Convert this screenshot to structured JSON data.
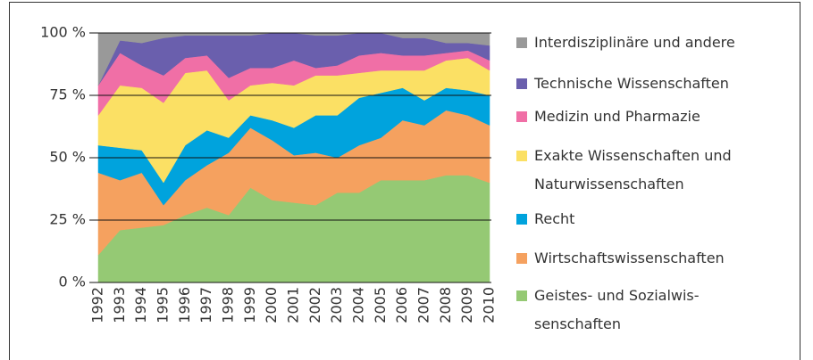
{
  "chart_data": {
    "type": "stacked_area",
    "categories": [
      "1992",
      "1993",
      "1994",
      "1995",
      "1996",
      "1997",
      "1998",
      "1999",
      "2000",
      "2001",
      "2002",
      "2003",
      "2004",
      "2005",
      "2006",
      "2007",
      "2008",
      "2009",
      "2010"
    ],
    "ylim": [
      0,
      100
    ],
    "yticks": [
      {
        "value": 0,
        "label": "0 %"
      },
      {
        "value": 25,
        "label": "25 %"
      },
      {
        "value": 50,
        "label": "50 %"
      },
      {
        "value": 75,
        "label": "75 %"
      },
      {
        "value": 100,
        "label": "100 %"
      }
    ],
    "grid": true,
    "series": [
      {
        "name": "Geistes- und Sozialwis­senschaften",
        "color": "#95c974",
        "values": [
          11,
          21,
          22,
          23,
          27,
          30,
          27,
          38,
          33,
          32,
          31,
          36,
          36,
          41,
          41,
          41,
          43,
          43,
          40
        ]
      },
      {
        "name": "Wirtschaftswissenschaften",
        "color": "#f5a15f",
        "values": [
          33,
          20,
          22,
          8,
          14,
          17,
          25,
          24,
          24,
          19,
          21,
          14,
          19,
          17,
          24,
          22,
          26,
          24,
          23
        ]
      },
      {
        "name": "Recht",
        "color": "#00a3dd",
        "values": [
          11,
          13,
          9,
          9,
          14,
          14,
          6,
          5,
          8,
          11,
          15,
          17,
          19,
          18,
          13,
          10,
          9,
          10,
          12
        ]
      },
      {
        "name": "Exakte Wissenschaften und Naturwissenschaften",
        "color": "#fbe064",
        "values": [
          12,
          25,
          25,
          32,
          29,
          24,
          15,
          12,
          15,
          17,
          16,
          16,
          10,
          9,
          7,
          12,
          11,
          13,
          10
        ]
      },
      {
        "name": "Medizin und Pharmazie",
        "color": "#f06fa6",
        "values": [
          12,
          13,
          9,
          11,
          6,
          6,
          9,
          7,
          6,
          10,
          3,
          4,
          7,
          7,
          6,
          6,
          3,
          3,
          4
        ]
      },
      {
        "name": "Technische Wissenschaften",
        "color": "#6a5fad",
        "values": [
          0,
          5,
          9,
          15,
          9,
          8,
          17,
          13,
          14,
          11,
          13,
          12,
          9,
          8,
          7,
          7,
          4,
          3,
          6
        ]
      },
      {
        "name": "Interdisziplinäre und andere",
        "color": "#999999",
        "values": [
          21,
          3,
          4,
          2,
          1,
          1,
          1,
          1,
          0,
          0,
          1,
          1,
          0,
          0,
          2,
          2,
          4,
          4,
          5
        ]
      }
    ]
  }
}
